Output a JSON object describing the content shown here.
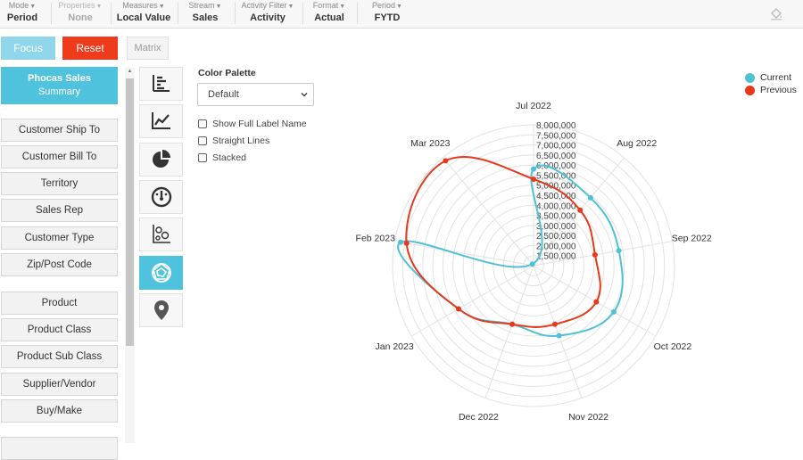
{
  "toolbar": {
    "items": [
      {
        "label": "Mode",
        "value": "Period",
        "disabled": false
      },
      {
        "label": "Properties",
        "value": "None",
        "disabled": true
      },
      {
        "label": "Measures",
        "value": "Local Value",
        "disabled": false
      },
      {
        "label": "Stream",
        "value": "Sales",
        "disabled": false
      },
      {
        "label": "Activity Filter",
        "value": "Activity",
        "disabled": false
      },
      {
        "label": "Format",
        "value": "Actual",
        "disabled": false
      },
      {
        "label": "Period",
        "value": "FYTD",
        "disabled": false
      }
    ],
    "paint_icon": "paint-bucket-icon"
  },
  "actions": {
    "focus_label": "Focus",
    "reset_label": "Reset",
    "matrix_label": "Matrix"
  },
  "summary": {
    "line1": "Phocas Sales",
    "line2": "Summary"
  },
  "nav": {
    "group1": [
      "Customer Ship To",
      "Customer Bill To",
      "Territory",
      "Sales Rep",
      "Customer Type",
      "Zip/Post Code"
    ],
    "group2": [
      "Product",
      "Product Class",
      "Product Sub Class",
      "Supplier/Vendor",
      "Buy/Make"
    ]
  },
  "chart_types": [
    {
      "icon": "bar-chart-icon",
      "active": false
    },
    {
      "icon": "line-chart-icon",
      "active": false
    },
    {
      "icon": "pie-chart-icon",
      "active": false
    },
    {
      "icon": "gauge-icon",
      "active": false
    },
    {
      "icon": "scatter-chart-icon",
      "active": false
    },
    {
      "icon": "radar-chart-icon",
      "active": true
    },
    {
      "icon": "map-pin-icon",
      "active": false
    }
  ],
  "options": {
    "palette_label": "Color Palette",
    "palette_value": "Default",
    "show_full_label": "Show Full Label Name",
    "straight_lines": "Straight Lines",
    "stacked": "Stacked",
    "show_full_label_checked": false,
    "straight_lines_checked": false,
    "stacked_checked": false
  },
  "colors": {
    "current": "#4ec1d5",
    "previous": "#e8381a",
    "accent": "#4fc3dd",
    "reset": "#ee3b1c"
  },
  "chart_data": {
    "type": "radar",
    "categories": [
      "Jul 2022",
      "Aug 2022",
      "Sep 2022",
      "Oct 2022",
      "Nov 2022",
      "Dec 2022",
      "Jan 2023",
      "Feb 2023",
      "Mar 2023"
    ],
    "radial_ticks": [
      "1,500,000",
      "2,000,000",
      "2,500,000",
      "3,000,000",
      "3,500,000",
      "4,000,000",
      "4,500,000",
      "5,000,000",
      "5,500,000",
      "6,000,000",
      "6,500,000",
      "7,000,000",
      "7,500,000",
      "8,000,000"
    ],
    "rmin": 1000000,
    "rmax": 8000000,
    "legend_position": "top-right",
    "series": [
      {
        "name": "Current",
        "values": [
          5800000,
          5400000,
          5300000,
          5600000,
          4700000,
          4100000,
          5300000,
          7700000,
          1100000
        ]
      },
      {
        "name": "Previous",
        "values": [
          5300000,
          4600000,
          4100000,
          4600000,
          4100000,
          4100000,
          5300000,
          7400000,
          7800000
        ]
      }
    ]
  }
}
